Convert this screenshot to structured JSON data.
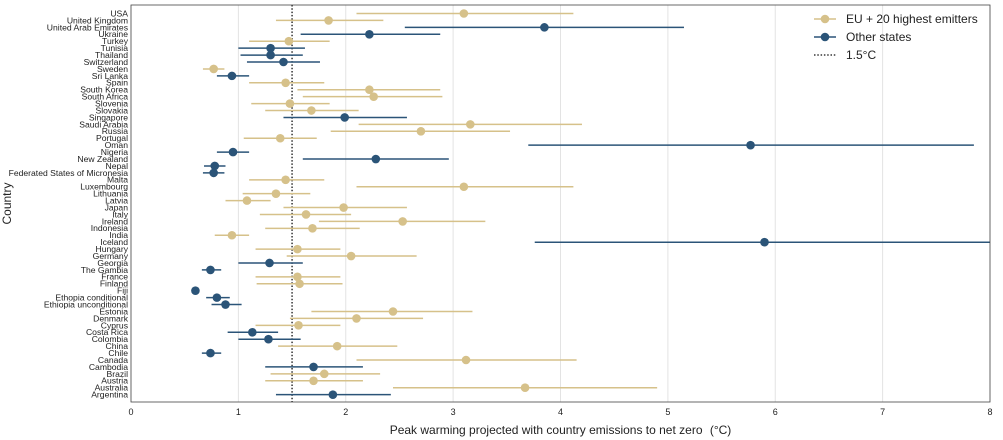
{
  "chart_data": {
    "type": "scatter",
    "variant": "dot-and-whisker (point estimate with horizontal range)",
    "xlabel": "Peak warming projected with country emissions to net zero",
    "xlabel_unit": "(°C)",
    "ylabel": "Country",
    "xlim": [
      0,
      8
    ],
    "xticks": [
      0,
      1,
      2,
      3,
      4,
      5,
      6,
      7,
      8
    ],
    "grid": "vertical gridlines at each x tick",
    "reference_line": {
      "label": "1.5°C",
      "x": 1.5,
      "style": "dotted black"
    },
    "legend_position": "top-right",
    "colors": {
      "EU + 20 highest emitters": "#d6c18a",
      "Other states": "#2b5478"
    },
    "series": [
      {
        "name": "EU + 20 highest emitters",
        "color": "#d6c18a"
      },
      {
        "name": "Other states",
        "color": "#2b5478"
      }
    ],
    "categories": [
      "USA",
      "United Kingdom",
      "United Arab Emirates",
      "Ukraine",
      "Turkey",
      "Tunisia",
      "Thailand",
      "Switzerland",
      "Sweden",
      "Sri Lanka",
      "Spain",
      "South Korea",
      "South Africa",
      "Slovenia",
      "Slovakia",
      "Singapore",
      "Saudi Arabia",
      "Russia",
      "Portugal",
      "Oman",
      "Nigeria",
      "New Zealand",
      "Nepal",
      "Federated States of Micronesia",
      "Malta",
      "Luxembourg",
      "Lithuania",
      "Latvia",
      "Japan",
      "Italy",
      "Ireland",
      "Indonesia",
      "India",
      "Iceland",
      "Hungary",
      "Germany",
      "Georgia",
      "The Gambia",
      "France",
      "Finland",
      "Fiji",
      "Ethopia conditional",
      "Ethiopia unconditional",
      "Estonia",
      "Denmark",
      "Cyprus",
      "Costa Rica",
      "Colombia",
      "China",
      "Chile",
      "Canada",
      "Cambodia",
      "Brazil",
      "Austria",
      "Australia",
      "Argentina"
    ],
    "points": [
      {
        "country": "USA",
        "series": "EU + 20 highest emitters",
        "value": 3.1,
        "low": 2.1,
        "high": 4.12
      },
      {
        "country": "United Kingdom",
        "series": "EU + 20 highest emitters",
        "value": 1.84,
        "low": 1.35,
        "high": 2.35
      },
      {
        "country": "United Arab Emirates",
        "series": "Other states",
        "value": 3.85,
        "low": 2.55,
        "high": 5.15
      },
      {
        "country": "Ukraine",
        "series": "Other states",
        "value": 2.22,
        "low": 1.58,
        "high": 2.88
      },
      {
        "country": "Turkey",
        "series": "EU + 20 highest emitters",
        "value": 1.47,
        "low": 1.1,
        "high": 1.85
      },
      {
        "country": "Tunisia",
        "series": "Other states",
        "value": 1.3,
        "low": 1.0,
        "high": 1.62
      },
      {
        "country": "Thailand",
        "series": "Other states",
        "value": 1.3,
        "low": 1.02,
        "high": 1.6
      },
      {
        "country": "Switzerland",
        "series": "Other states",
        "value": 1.42,
        "low": 1.08,
        "high": 1.76
      },
      {
        "country": "Sweden",
        "series": "EU + 20 highest emitters",
        "value": 0.77,
        "low": 0.67,
        "high": 0.87
      },
      {
        "country": "Sri Lanka",
        "series": "Other states",
        "value": 0.94,
        "low": 0.8,
        "high": 1.1
      },
      {
        "country": "Spain",
        "series": "EU + 20 highest emitters",
        "value": 1.44,
        "low": 1.1,
        "high": 1.8
      },
      {
        "country": "South Korea",
        "series": "EU + 20 highest emitters",
        "value": 2.22,
        "low": 1.55,
        "high": 2.88
      },
      {
        "country": "South Africa",
        "series": "EU + 20 highest emitters",
        "value": 2.26,
        "low": 1.6,
        "high": 2.9
      },
      {
        "country": "Slovenia",
        "series": "EU + 20 highest emitters",
        "value": 1.48,
        "low": 1.12,
        "high": 1.85
      },
      {
        "country": "Slovakia",
        "series": "EU + 20 highest emitters",
        "value": 1.68,
        "low": 1.25,
        "high": 2.12
      },
      {
        "country": "Singapore",
        "series": "Other states",
        "value": 1.99,
        "low": 1.42,
        "high": 2.57
      },
      {
        "country": "Saudi Arabia",
        "series": "EU + 20 highest emitters",
        "value": 3.16,
        "low": 2.12,
        "high": 4.2
      },
      {
        "country": "Russia",
        "series": "EU + 20 highest emitters",
        "value": 2.7,
        "low": 1.86,
        "high": 3.53
      },
      {
        "country": "Portugal",
        "series": "EU + 20 highest emitters",
        "value": 1.39,
        "low": 1.05,
        "high": 1.73
      },
      {
        "country": "Oman",
        "series": "Other states",
        "value": 5.77,
        "low": 3.7,
        "high": 7.85
      },
      {
        "country": "Nigeria",
        "series": "Other states",
        "value": 0.95,
        "low": 0.8,
        "high": 1.1
      },
      {
        "country": "New Zealand",
        "series": "Other states",
        "value": 2.28,
        "low": 1.6,
        "high": 2.96
      },
      {
        "country": "Nepal",
        "series": "Other states",
        "value": 0.78,
        "low": 0.68,
        "high": 0.88
      },
      {
        "country": "Federated States of Micronesia",
        "series": "Other states",
        "value": 0.77,
        "low": 0.67,
        "high": 0.87
      },
      {
        "country": "Malta",
        "series": "EU + 20 highest emitters",
        "value": 1.44,
        "low": 1.1,
        "high": 1.8
      },
      {
        "country": "Luxembourg",
        "series": "EU + 20 highest emitters",
        "value": 3.1,
        "low": 2.1,
        "high": 4.12
      },
      {
        "country": "Lithuania",
        "series": "EU + 20 highest emitters",
        "value": 1.35,
        "low": 1.04,
        "high": 1.67
      },
      {
        "country": "Latvia",
        "series": "EU + 20 highest emitters",
        "value": 1.08,
        "low": 0.88,
        "high": 1.3
      },
      {
        "country": "Japan",
        "series": "EU + 20 highest emitters",
        "value": 1.98,
        "low": 1.42,
        "high": 2.57
      },
      {
        "country": "Italy",
        "series": "EU + 20 highest emitters",
        "value": 1.63,
        "low": 1.2,
        "high": 2.05
      },
      {
        "country": "Ireland",
        "series": "EU + 20 highest emitters",
        "value": 2.53,
        "low": 1.75,
        "high": 3.3
      },
      {
        "country": "Indonesia",
        "series": "EU + 20 highest emitters",
        "value": 1.69,
        "low": 1.25,
        "high": 2.13
      },
      {
        "country": "India",
        "series": "EU + 20 highest emitters",
        "value": 0.94,
        "low": 0.78,
        "high": 1.1
      },
      {
        "country": "Iceland",
        "series": "Other states",
        "value": 5.9,
        "low": 3.76,
        "high": 8.05
      },
      {
        "country": "Hungary",
        "series": "EU + 20 highest emitters",
        "value": 1.55,
        "low": 1.16,
        "high": 1.95
      },
      {
        "country": "Germany",
        "series": "EU + 20 highest emitters",
        "value": 2.05,
        "low": 1.45,
        "high": 2.66
      },
      {
        "country": "Georgia",
        "series": "Other states",
        "value": 1.29,
        "low": 1.0,
        "high": 1.6
      },
      {
        "country": "The Gambia",
        "series": "Other states",
        "value": 0.74,
        "low": 0.66,
        "high": 0.84
      },
      {
        "country": "France",
        "series": "EU + 20 highest emitters",
        "value": 1.55,
        "low": 1.16,
        "high": 1.95
      },
      {
        "country": "Finland",
        "series": "EU + 20 highest emitters",
        "value": 1.57,
        "low": 1.17,
        "high": 1.97
      },
      {
        "country": "Fiji",
        "series": "Other states",
        "value": 0.6,
        "low": 0.6,
        "high": 0.6
      },
      {
        "country": "Ethopia conditional",
        "series": "Other states",
        "value": 0.8,
        "low": 0.7,
        "high": 0.92
      },
      {
        "country": "Ethiopia unconditional",
        "series": "Other states",
        "value": 0.88,
        "low": 0.75,
        "high": 1.03
      },
      {
        "country": "Estonia",
        "series": "EU + 20 highest emitters",
        "value": 2.44,
        "low": 1.68,
        "high": 3.18
      },
      {
        "country": "Denmark",
        "series": "EU + 20 highest emitters",
        "value": 2.1,
        "low": 1.48,
        "high": 2.72
      },
      {
        "country": "Cyprus",
        "series": "EU + 20 highest emitters",
        "value": 1.56,
        "low": 1.16,
        "high": 1.95
      },
      {
        "country": "Costa Rica",
        "series": "Other states",
        "value": 1.13,
        "low": 0.9,
        "high": 1.37
      },
      {
        "country": "Colombia",
        "series": "Other states",
        "value": 1.28,
        "low": 1.0,
        "high": 1.58
      },
      {
        "country": "China",
        "series": "EU + 20 highest emitters",
        "value": 1.92,
        "low": 1.37,
        "high": 2.48
      },
      {
        "country": "Chile",
        "series": "Other states",
        "value": 0.74,
        "low": 0.66,
        "high": 0.84
      },
      {
        "country": "Canada",
        "series": "EU + 20 highest emitters",
        "value": 3.12,
        "low": 2.1,
        "high": 4.15
      },
      {
        "country": "Cambodia",
        "series": "Other states",
        "value": 1.7,
        "low": 1.25,
        "high": 2.16
      },
      {
        "country": "Brazil",
        "series": "EU + 20 highest emitters",
        "value": 1.8,
        "low": 1.3,
        "high": 2.32
      },
      {
        "country": "Austria",
        "series": "EU + 20 highest emitters",
        "value": 1.7,
        "low": 1.25,
        "high": 2.16
      },
      {
        "country": "Australia",
        "series": "EU + 20 highest emitters",
        "value": 3.67,
        "low": 2.44,
        "high": 4.9
      },
      {
        "country": "Argentina",
        "series": "Other states",
        "value": 1.88,
        "low": 1.35,
        "high": 2.42
      }
    ]
  }
}
